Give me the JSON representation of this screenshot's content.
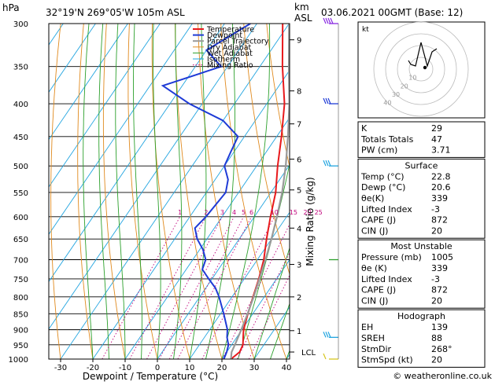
{
  "header": {
    "pressure_unit": "hPa",
    "location": "32°19'N  269°05'W  105m  ASL",
    "height_unit_top": "km",
    "height_unit_bottom": "ASL",
    "datetime": "03.06.2021  00GMT  (Base: 12)"
  },
  "chart_data": {
    "type": "skew-t",
    "xlabel": "Dewpoint / Temperature (°C)",
    "ylabel_right": "Mixing Ratio (g/kg)",
    "pressure_levels": [
      300,
      350,
      400,
      450,
      500,
      550,
      600,
      650,
      700,
      750,
      800,
      850,
      900,
      950,
      1000
    ],
    "x_ticks": [
      -30,
      -20,
      -10,
      0,
      10,
      20,
      30,
      40
    ],
    "km_ticks": [
      {
        "label": "9",
        "p": 318
      },
      {
        "label": "8",
        "p": 382
      },
      {
        "label": "7",
        "p": 430
      },
      {
        "label": "6",
        "p": 488
      },
      {
        "label": "5",
        "p": 545
      },
      {
        "label": "4",
        "p": 625
      },
      {
        "label": "3",
        "p": 712
      },
      {
        "label": "2",
        "p": 800
      },
      {
        "label": "1",
        "p": 903
      }
    ],
    "lcl_label": "LCL",
    "lcl_p": 975,
    "mixing_ratio_labels": [
      "1",
      "2",
      "3",
      "4",
      "5",
      "6",
      "10",
      "15",
      "20",
      "25"
    ],
    "legend": [
      "Temperature",
      "Dewpoint",
      "Parcel Trajectory",
      "Dry Adiabat",
      "Wet Adiabat",
      "Isotherm",
      "Mixing Ratio"
    ],
    "series": [
      {
        "name": "Temperature",
        "color": "#e8191c",
        "points": [
          [
            1000,
            22.8
          ],
          [
            975,
            24
          ],
          [
            950,
            23.5
          ],
          [
            925,
            22
          ],
          [
            900,
            20.5
          ],
          [
            850,
            18.5
          ],
          [
            800,
            16.5
          ],
          [
            750,
            14.5
          ],
          [
            700,
            12
          ],
          [
            650,
            8.5
          ],
          [
            600,
            5
          ],
          [
            550,
            1.5
          ],
          [
            500,
            -3.5
          ],
          [
            450,
            -8.5
          ],
          [
            400,
            -14.5
          ],
          [
            350,
            -23
          ],
          [
            300,
            -32
          ]
        ]
      },
      {
        "name": "Dewpoint",
        "color": "#1f3bd6",
        "points": [
          [
            1000,
            20.6
          ],
          [
            975,
            20
          ],
          [
            950,
            19
          ],
          [
            925,
            17
          ],
          [
            900,
            15.5
          ],
          [
            850,
            11
          ],
          [
            800,
            6
          ],
          [
            775,
            3
          ],
          [
            750,
            -1
          ],
          [
            725,
            -5
          ],
          [
            700,
            -6
          ],
          [
            675,
            -9
          ],
          [
            650,
            -13
          ],
          [
            625,
            -16
          ],
          [
            600,
            -15
          ],
          [
            550,
            -14
          ],
          [
            525,
            -16
          ],
          [
            500,
            -20
          ],
          [
            475,
            -21
          ],
          [
            450,
            -22
          ],
          [
            425,
            -30
          ],
          [
            400,
            -44
          ],
          [
            375,
            -56
          ],
          [
            350,
            -42
          ],
          [
            330,
            -50
          ],
          [
            300,
            -42
          ]
        ]
      },
      {
        "name": "Parcel Trajectory",
        "color": "#9a9a9a",
        "points": [
          [
            1000,
            22.8
          ],
          [
            975,
            21.5
          ],
          [
            950,
            21
          ],
          [
            900,
            19.8
          ],
          [
            850,
            18.4
          ],
          [
            800,
            16.7
          ],
          [
            750,
            14.7
          ],
          [
            700,
            12.5
          ],
          [
            650,
            10
          ],
          [
            600,
            7
          ],
          [
            550,
            3.5
          ],
          [
            500,
            -1
          ],
          [
            450,
            -6.5
          ],
          [
            400,
            -13
          ],
          [
            350,
            -21
          ],
          [
            300,
            -30
          ]
        ]
      }
    ]
  },
  "legend_colors": {
    "Temperature": "#e8191c",
    "Dewpoint": "#1f3bd6",
    "Parcel Trajectory": "#9a9a9a",
    "Dry Adiabat": "#e08a1e",
    "Wet Adiabat": "#2ca02c",
    "Isotherm": "#22a5e0",
    "Mixing Ratio": "#c0007a"
  },
  "hodograph": {
    "unit_label": "kt",
    "ring_labels": [
      "10",
      "20",
      "30",
      "40"
    ]
  },
  "indices": {
    "rows": [
      {
        "label": "K",
        "value": "29"
      },
      {
        "label": "Totals Totals",
        "value": "47"
      },
      {
        "label": "PW (cm)",
        "value": "3.71"
      }
    ],
    "surface": {
      "title": "Surface",
      "rows": [
        {
          "label": "Temp (°C)",
          "value": "22.8"
        },
        {
          "label": "Dewp (°C)",
          "value": "20.6"
        },
        {
          "label": "θe(K)",
          "value": "339"
        },
        {
          "label": "Lifted Index",
          "value": "-3"
        },
        {
          "label": "CAPE (J)",
          "value": "872"
        },
        {
          "label": "CIN (J)",
          "value": "20"
        }
      ]
    },
    "most_unstable": {
      "title": "Most Unstable",
      "rows": [
        {
          "label": "Pressure (mb)",
          "value": "1005"
        },
        {
          "label": "θe (K)",
          "value": "339"
        },
        {
          "label": "Lifted Index",
          "value": "-3"
        },
        {
          "label": "CAPE (J)",
          "value": "872"
        },
        {
          "label": "CIN (J)",
          "value": "20"
        }
      ]
    },
    "hodograph": {
      "title": "Hodograph",
      "rows": [
        {
          "label": "EH",
          "value": "139"
        },
        {
          "label": "SREH",
          "value": "88"
        },
        {
          "label": "StmDir",
          "value": "268°"
        },
        {
          "label": "StmSpd (kt)",
          "value": "20"
        }
      ]
    }
  },
  "footer": {
    "copyright": "© weatheronline.co.uk"
  }
}
